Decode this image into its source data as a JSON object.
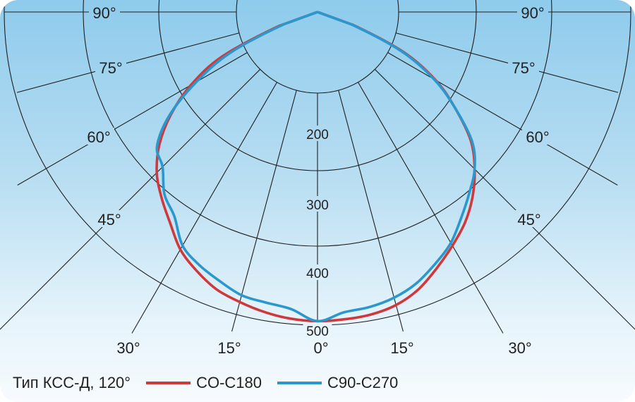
{
  "chart_data": {
    "type": "polar",
    "title": "",
    "angle_unit": "deg",
    "angle_range": [
      -90,
      90
    ],
    "radial_range": [
      0,
      500
    ],
    "grid": true,
    "radial_tick_labels": [
      "200",
      "300",
      "400",
      "500"
    ],
    "angle_tick_labels_left": [
      "90°",
      "75°",
      "60°",
      "45°"
    ],
    "angle_tick_labels_right": [
      "90°",
      "75°",
      "60°",
      "45°"
    ],
    "angle_tick_labels_bottom": [
      "30°",
      "15°",
      "0°",
      "15°",
      "30°"
    ],
    "legend_title": "Тип КСС-Д, 120°",
    "legend_placement": "bottom-left",
    "angles": [
      -90,
      -70,
      -65,
      -60,
      -55,
      -50,
      -45,
      -40,
      -35,
      -30,
      -25,
      -20,
      -15,
      -10,
      -5,
      0,
      5,
      10,
      15,
      20,
      25,
      30,
      35,
      40,
      45,
      50,
      55,
      60,
      65,
      70,
      90
    ],
    "series": [
      {
        "name": "CO-C180",
        "color": "#d0393b",
        "values": [
          0,
          65,
          165,
          230,
          282,
          325,
          358,
          382,
          405,
          432,
          450,
          465,
          473,
          480,
          485,
          487,
          486,
          484,
          478,
          465,
          445,
          425,
          405,
          380,
          350,
          315,
          265,
          215,
          150,
          60,
          0
        ]
      },
      {
        "name": "C90-C270",
        "color": "#2b98cd",
        "values": [
          0,
          55,
          150,
          220,
          285,
          330,
          345,
          375,
          393,
          425,
          440,
          451,
          462,
          465,
          470,
          487,
          475,
          472,
          466,
          455,
          438,
          420,
          395,
          372,
          350,
          318,
          265,
          212,
          145,
          55,
          0
        ]
      }
    ]
  }
}
